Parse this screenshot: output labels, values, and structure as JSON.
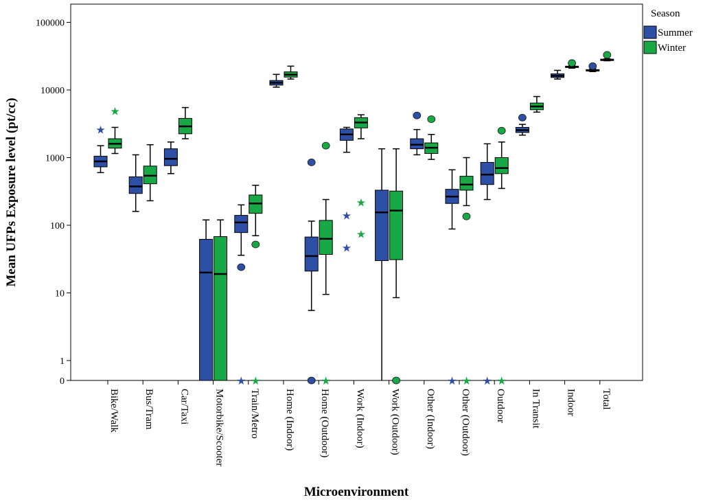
{
  "chart_data": {
    "type": "boxplot",
    "xlabel": "Microenvironment",
    "ylabel": "Mean UFPs Exposure level  (pt/cc)",
    "yscale": "log",
    "ytick_labels": [
      "0",
      "1",
      "10",
      "100",
      "1000",
      "10000",
      "100000"
    ],
    "legend": {
      "title": "Season",
      "position": "top-right",
      "entries": [
        {
          "name": "Summer",
          "color": "#2e4fa6"
        },
        {
          "name": "Winter",
          "color": "#18a845"
        }
      ]
    },
    "categories": [
      "Bike/Walk",
      "Bus/Tram",
      "Car/Taxi",
      "Motorbike/Scooter",
      "Train/Metro",
      "Home (Indoor)",
      "Home (Outdoor)",
      "Work (Indoor)",
      "Work (Outdoor)",
      "Other (Indoor)",
      "Other (Outdoor)",
      "Outdoor",
      "In Transit",
      "Indoor",
      "Total"
    ],
    "series": [
      {
        "name": "Summer",
        "boxes": [
          {
            "category": "Bike/Walk",
            "whisker_low": 600,
            "q1": 730,
            "median": 880,
            "q3": 1050,
            "whisker_high": 1500,
            "outliers": [],
            "extremes": [
              2600
            ]
          },
          {
            "category": "Bus/Tram",
            "whisker_low": 160,
            "q1": 295,
            "median": 375,
            "q3": 520,
            "whisker_high": 1100,
            "outliers": [],
            "extremes": []
          },
          {
            "category": "Car/Taxi",
            "whisker_low": 580,
            "q1": 760,
            "median": 960,
            "q3": 1350,
            "whisker_high": 1700,
            "outliers": [],
            "extremes": []
          },
          {
            "category": "Motorbike/Scooter",
            "whisker_low": 0,
            "q1": 0,
            "median": 20,
            "q3": 62,
            "whisker_high": 120,
            "outliers": [],
            "extremes": []
          },
          {
            "category": "Train/Metro",
            "whisker_low": 36,
            "q1": 78,
            "median": 110,
            "q3": 140,
            "whisker_high": 200,
            "outliers": [
              24
            ],
            "extremes": [
              0
            ]
          },
          {
            "category": "Home (Indoor)",
            "whisker_low": 11000,
            "q1": 11800,
            "median": 12800,
            "q3": 13800,
            "whisker_high": 17000,
            "outliers": [],
            "extremes": []
          },
          {
            "category": "Home (Outdoor)",
            "whisker_low": 5.5,
            "q1": 21,
            "median": 35,
            "q3": 67,
            "whisker_high": 115,
            "outliers": [
              850,
              0
            ],
            "extremes": []
          },
          {
            "category": "Work (Indoor)",
            "whisker_low": 1200,
            "q1": 1800,
            "median": 2200,
            "q3": 2650,
            "whisker_high": 2800,
            "outliers": [],
            "extremes": [
              140,
              47
            ]
          },
          {
            "category": "Work (Outdoor)",
            "whisker_low": 0,
            "q1": 30,
            "median": 155,
            "q3": 330,
            "whisker_high": 1350,
            "outliers": [],
            "extremes": []
          },
          {
            "category": "Other (Indoor)",
            "whisker_low": 1100,
            "q1": 1350,
            "median": 1550,
            "q3": 1900,
            "whisker_high": 2600,
            "outliers": [
              4200
            ],
            "extremes": []
          },
          {
            "category": "Other (Outdoor)",
            "whisker_low": 88,
            "q1": 210,
            "median": 265,
            "q3": 340,
            "whisker_high": 660,
            "outliers": [],
            "extremes": [
              0
            ]
          },
          {
            "category": "Outdoor",
            "whisker_low": 240,
            "q1": 400,
            "median": 560,
            "q3": 850,
            "whisker_high": 1600,
            "outliers": [],
            "extremes": [
              0
            ]
          },
          {
            "category": "In Transit",
            "whisker_low": 2150,
            "q1": 2350,
            "median": 2550,
            "q3": 2800,
            "whisker_high": 3100,
            "outliers": [
              3900
            ],
            "extremes": []
          },
          {
            "category": "Indoor",
            "whisker_low": 14500,
            "q1": 15300,
            "median": 16200,
            "q3": 17300,
            "whisker_high": 19500,
            "outliers": [],
            "extremes": []
          },
          {
            "category": "Total",
            "whisker_low": 18700,
            "q1": 19000,
            "median": 19500,
            "q3": 20000,
            "whisker_high": 20500,
            "outliers": [
              22500
            ],
            "extremes": []
          }
        ]
      },
      {
        "name": "Winter",
        "boxes": [
          {
            "category": "Bike/Walk",
            "whisker_low": 1150,
            "q1": 1380,
            "median": 1600,
            "q3": 1900,
            "whisker_high": 2800,
            "outliers": [],
            "extremes": [
              4900
            ]
          },
          {
            "category": "Bus/Tram",
            "whisker_low": 230,
            "q1": 410,
            "median": 540,
            "q3": 750,
            "whisker_high": 1550,
            "outliers": [],
            "extremes": []
          },
          {
            "category": "Car/Taxi",
            "whisker_low": 1900,
            "q1": 2250,
            "median": 2900,
            "q3": 3800,
            "whisker_high": 5500,
            "outliers": [],
            "extremes": []
          },
          {
            "category": "Motorbike/Scooter",
            "whisker_low": 0,
            "q1": 0,
            "median": 19,
            "q3": 68,
            "whisker_high": 120,
            "outliers": [],
            "extremes": []
          },
          {
            "category": "Train/Metro",
            "whisker_low": 70,
            "q1": 150,
            "median": 210,
            "q3": 280,
            "whisker_high": 390,
            "outliers": [
              52
            ],
            "extremes": [
              0
            ]
          },
          {
            "category": "Home (Indoor)",
            "whisker_low": 14500,
            "q1": 15500,
            "median": 16800,
            "q3": 18500,
            "whisker_high": 22500,
            "outliers": [],
            "extremes": []
          },
          {
            "category": "Home (Outdoor)",
            "whisker_low": 9.5,
            "q1": 37,
            "median": 63,
            "q3": 118,
            "whisker_high": 240,
            "outliers": [
              1500
            ],
            "extremes": [
              0
            ]
          },
          {
            "category": "Work (Indoor)",
            "whisker_low": 1900,
            "q1": 2750,
            "median": 3300,
            "q3": 3900,
            "whisker_high": 4300,
            "outliers": [],
            "extremes": [
              220,
              75
            ]
          },
          {
            "category": "Work (Outdoor)",
            "whisker_low": 8.5,
            "q1": 31,
            "median": 165,
            "q3": 320,
            "whisker_high": 1350,
            "outliers": [
              0
            ],
            "extremes": []
          },
          {
            "category": "Other (Indoor)",
            "whisker_low": 940,
            "q1": 1150,
            "median": 1400,
            "q3": 1650,
            "whisker_high": 2200,
            "outliers": [
              3700
            ],
            "extremes": []
          },
          {
            "category": "Other (Outdoor)",
            "whisker_low": 195,
            "q1": 330,
            "median": 400,
            "q3": 530,
            "whisker_high": 1000,
            "outliers": [
              135
            ],
            "extremes": [
              0
            ]
          },
          {
            "category": "Outdoor",
            "whisker_low": 350,
            "q1": 580,
            "median": 700,
            "q3": 1000,
            "whisker_high": 1700,
            "outliers": [
              2500
            ],
            "extremes": [
              0
            ]
          },
          {
            "category": "In Transit",
            "whisker_low": 4700,
            "q1": 5100,
            "median": 5700,
            "q3": 6400,
            "whisker_high": 8000,
            "outliers": [],
            "extremes": []
          },
          {
            "category": "Indoor",
            "whisker_low": 21000,
            "q1": 21500,
            "median": 22000,
            "q3": 22500,
            "whisker_high": 23000,
            "outliers": [
              25000
            ],
            "extremes": []
          },
          {
            "category": "Total",
            "whisker_low": 27000,
            "q1": 27700,
            "median": 28000,
            "q3": 28500,
            "whisker_high": 29000,
            "outliers": [
              33000
            ],
            "extremes": []
          }
        ]
      }
    ]
  }
}
